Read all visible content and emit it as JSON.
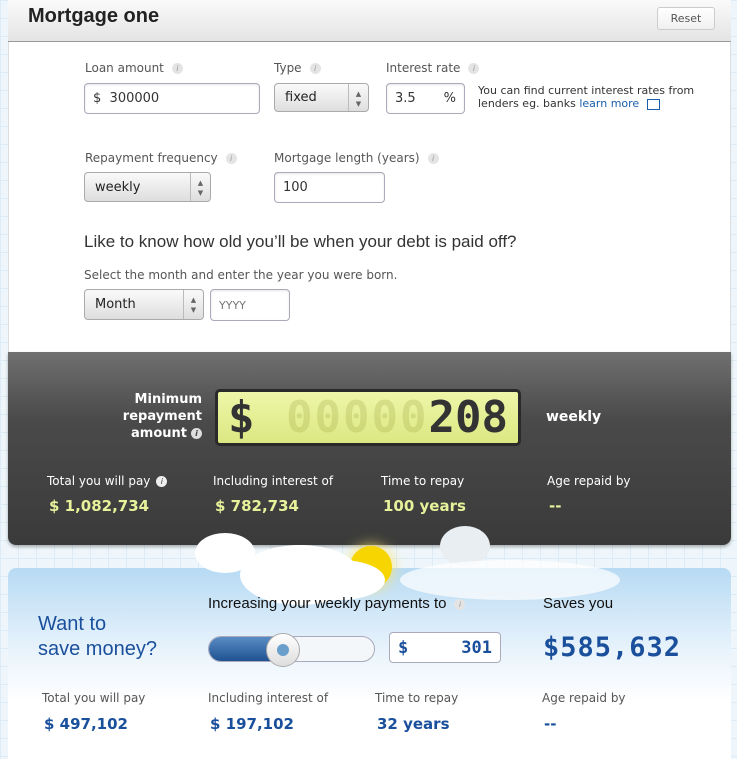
{
  "header": {
    "title": "Mortgage one",
    "reset_label": "Reset"
  },
  "form": {
    "loan_amount": {
      "label": "Loan amount",
      "prefix": "$",
      "value": "300000"
    },
    "type": {
      "label": "Type",
      "value": "fixed"
    },
    "interest_rate": {
      "label": "Interest rate",
      "value": "3.5",
      "suffix": "%"
    },
    "note": {
      "text": "You can find current interest rates from lenders eg. banks",
      "link": "learn more"
    },
    "repayment_frequency": {
      "label": "Repayment frequency",
      "value": "weekly"
    },
    "mortgage_length": {
      "label": "Mortgage length (years)",
      "value": "100"
    },
    "age_heading": "Like to know how old you’ll be when your debt is paid off?",
    "age_instruction": "Select the month and enter the year you were born.",
    "month": {
      "value": "Month"
    },
    "year": {
      "placeholder": "YYYY"
    }
  },
  "result": {
    "min_label": "Minimum repayment amount",
    "lcd_symbol": "$",
    "lcd_ghost": "00000",
    "lcd_value": "208",
    "frequency": "weekly",
    "stats": [
      {
        "label": "Total you will pay",
        "value": "$ 1,082,734"
      },
      {
        "label": "Including interest of",
        "value": "$ 782,734"
      },
      {
        "label": "Time to repay",
        "value": "100 years"
      },
      {
        "label": "Age repaid by",
        "value": "--"
      }
    ]
  },
  "save": {
    "title_line1": "Want to",
    "title_line2": "save money?",
    "increase_label": "Increasing your weekly payments to",
    "slider_fraction": 0.45,
    "payment_symbol": "$",
    "payment_value": "301",
    "saves_label": "Saves you",
    "saves_value": "$585,632",
    "stats": [
      {
        "label": "Total you will pay",
        "value": "$ 497,102"
      },
      {
        "label": "Including interest of",
        "value": "$ 197,102"
      },
      {
        "label": "Time to repay",
        "value": "32 years"
      },
      {
        "label": "Age repaid by",
        "value": "--"
      }
    ]
  },
  "colors": {
    "accent_blue": "#1a4f9c",
    "lcd_bg": "#e4ef94",
    "highlight_yellow": "#e8f29a"
  }
}
